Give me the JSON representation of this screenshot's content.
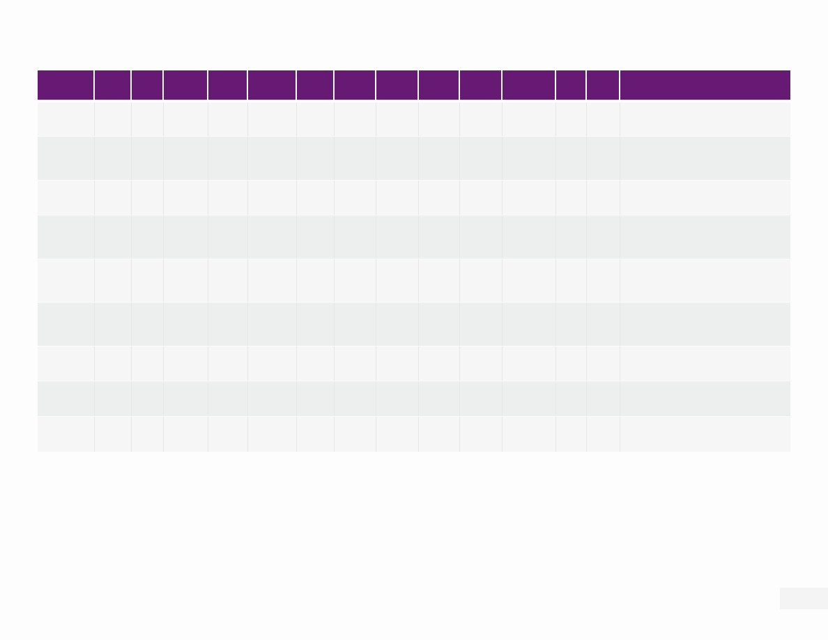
{
  "table": {
    "header_color": "#661a74",
    "row_color_odd": "#f6f6f6",
    "row_color_even": "#edeeee",
    "column_count": 15,
    "headers": [
      "",
      "",
      "",
      "",
      "",
      "",
      "",
      "",
      "",
      "",
      "",
      "",
      "",
      "",
      ""
    ],
    "rows": [
      [
        "",
        "",
        "",
        "",
        "",
        "",
        "",
        "",
        "",
        "",
        "",
        "",
        "",
        "",
        ""
      ],
      [
        "",
        "",
        "",
        "",
        "",
        "",
        "",
        "",
        "",
        "",
        "",
        "",
        "",
        "",
        ""
      ],
      [
        "",
        "",
        "",
        "",
        "",
        "",
        "",
        "",
        "",
        "",
        "",
        "",
        "",
        "",
        ""
      ],
      [
        "",
        "",
        "",
        "",
        "",
        "",
        "",
        "",
        "",
        "",
        "",
        "",
        "",
        "",
        ""
      ],
      [
        "",
        "",
        "",
        "",
        "",
        "",
        "",
        "",
        "",
        "",
        "",
        "",
        "",
        "",
        ""
      ],
      [
        "",
        "",
        "",
        "",
        "",
        "",
        "",
        "",
        "",
        "",
        "",
        "",
        "",
        "",
        ""
      ],
      [
        "",
        "",
        "",
        "",
        "",
        "",
        "",
        "",
        "",
        "",
        "",
        "",
        "",
        "",
        ""
      ],
      [
        "",
        "",
        "",
        "",
        "",
        "",
        "",
        "",
        "",
        "",
        "",
        "",
        "",
        "",
        ""
      ],
      [
        "",
        "",
        "",
        "",
        "",
        "",
        "",
        "",
        "",
        "",
        "",
        "",
        "",
        "",
        ""
      ]
    ]
  },
  "footer": {
    "page_number": ""
  }
}
